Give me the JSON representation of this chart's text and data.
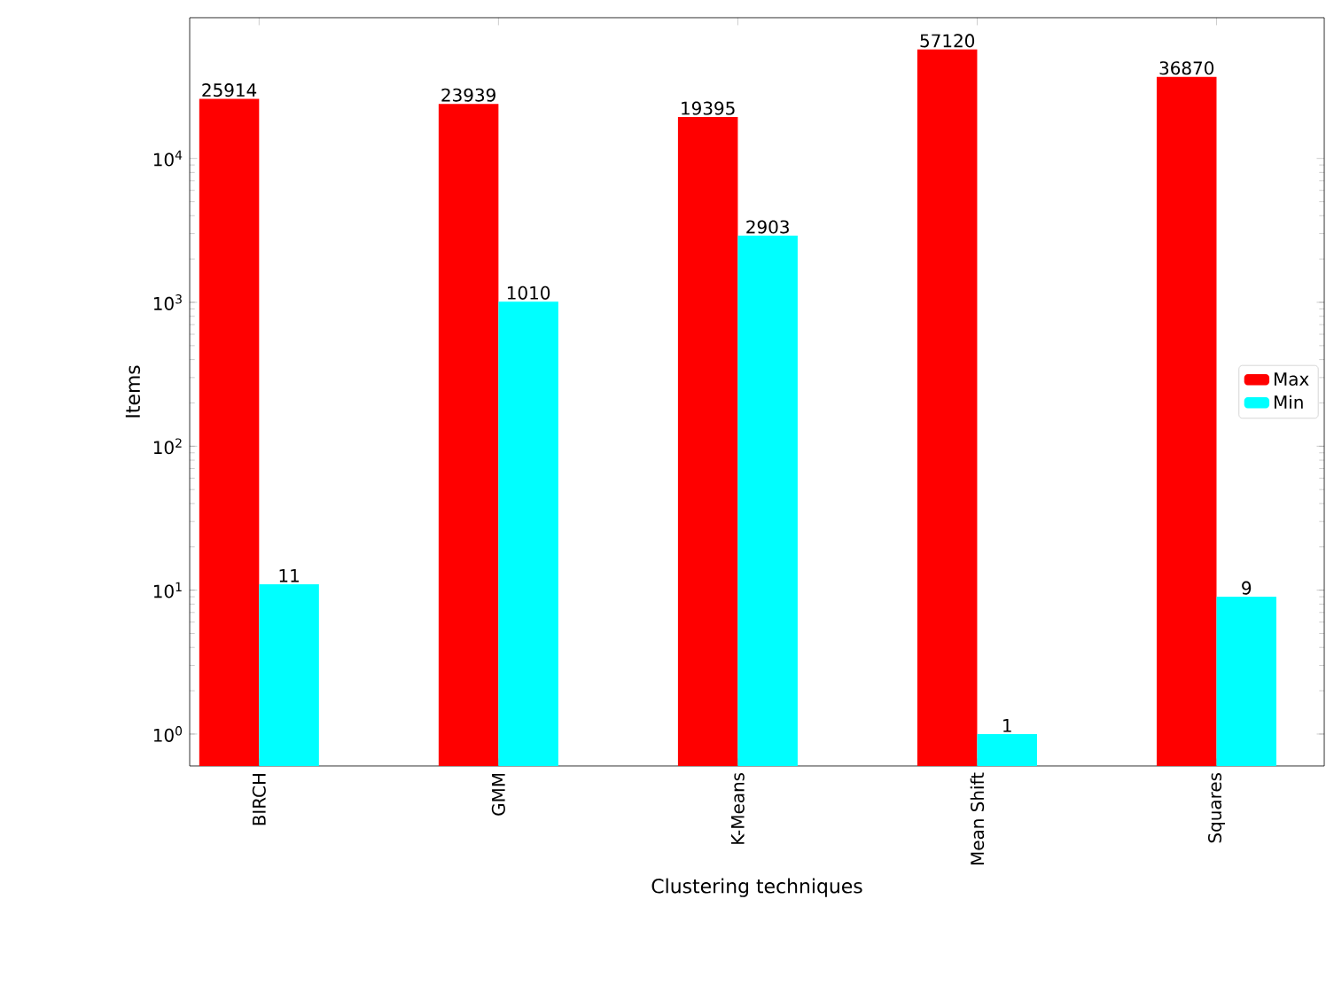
{
  "chart_data": {
    "type": "bar",
    "xlabel": "Clustering techniques",
    "ylabel": "Items",
    "categories": [
      "BIRCH",
      "GMM",
      "K-Means",
      "Mean Shift",
      "Squares"
    ],
    "series": [
      {
        "name": "Max",
        "color": "#ff0000",
        "values": [
          25914,
          23939,
          19395,
          57120,
          36870
        ]
      },
      {
        "name": "Min",
        "color": "#00ffff",
        "values": [
          11,
          1010,
          2903,
          1,
          9
        ]
      }
    ],
    "log": "y",
    "ylim": [
      0.6,
      95000
    ],
    "yticks": [
      {
        "value": 1,
        "label": "10$^{0}$"
      },
      {
        "value": 10,
        "label": "10$^{1}$"
      },
      {
        "value": 100,
        "label": "10$^{2}$"
      },
      {
        "value": 1000,
        "label": "10$^{3}$"
      },
      {
        "value": 10000,
        "label": "10$^{4}$"
      }
    ],
    "data_labels": true,
    "legend": "right",
    "grid": false
  }
}
